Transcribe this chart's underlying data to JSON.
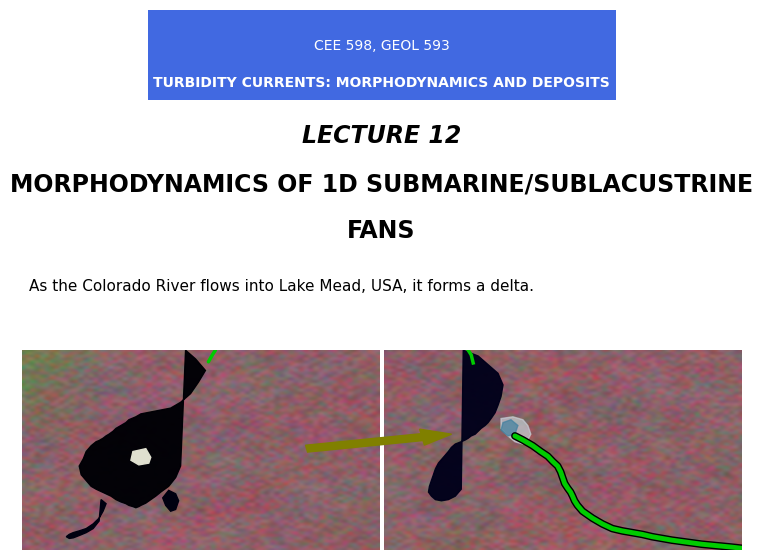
{
  "bg_color": "#ffffff",
  "header_bg": "#4169E1",
  "header_line1": "CEE 598, GEOL 593",
  "header_line2": "TURBIDITY CURRENTS: MORPHODYNAMICS AND DEPOSITS",
  "header_text_color": "#ffffff",
  "header_line1_weight": "normal",
  "header_line2_weight": "bold",
  "title_line1": "LECTURE 12",
  "title_line2": "MORPHODYNAMICS OF 1D SUBMARINE/SUBLACUSTRINE",
  "title_line3": "FANS",
  "title_style": "italic",
  "title_weight": "bold",
  "title_color": "#000000",
  "subtitle": "As the Colorado River flows into Lake Mead, USA, it forms a delta.",
  "subtitle_color": "#000000",
  "header_fontsize": 10,
  "title_fontsize": 17,
  "subtitle_fontsize": 11,
  "arrow_color": "#808000",
  "river_color": "#00cc00",
  "lake_color_left": "#000005",
  "lake_color_right": "#00001a"
}
